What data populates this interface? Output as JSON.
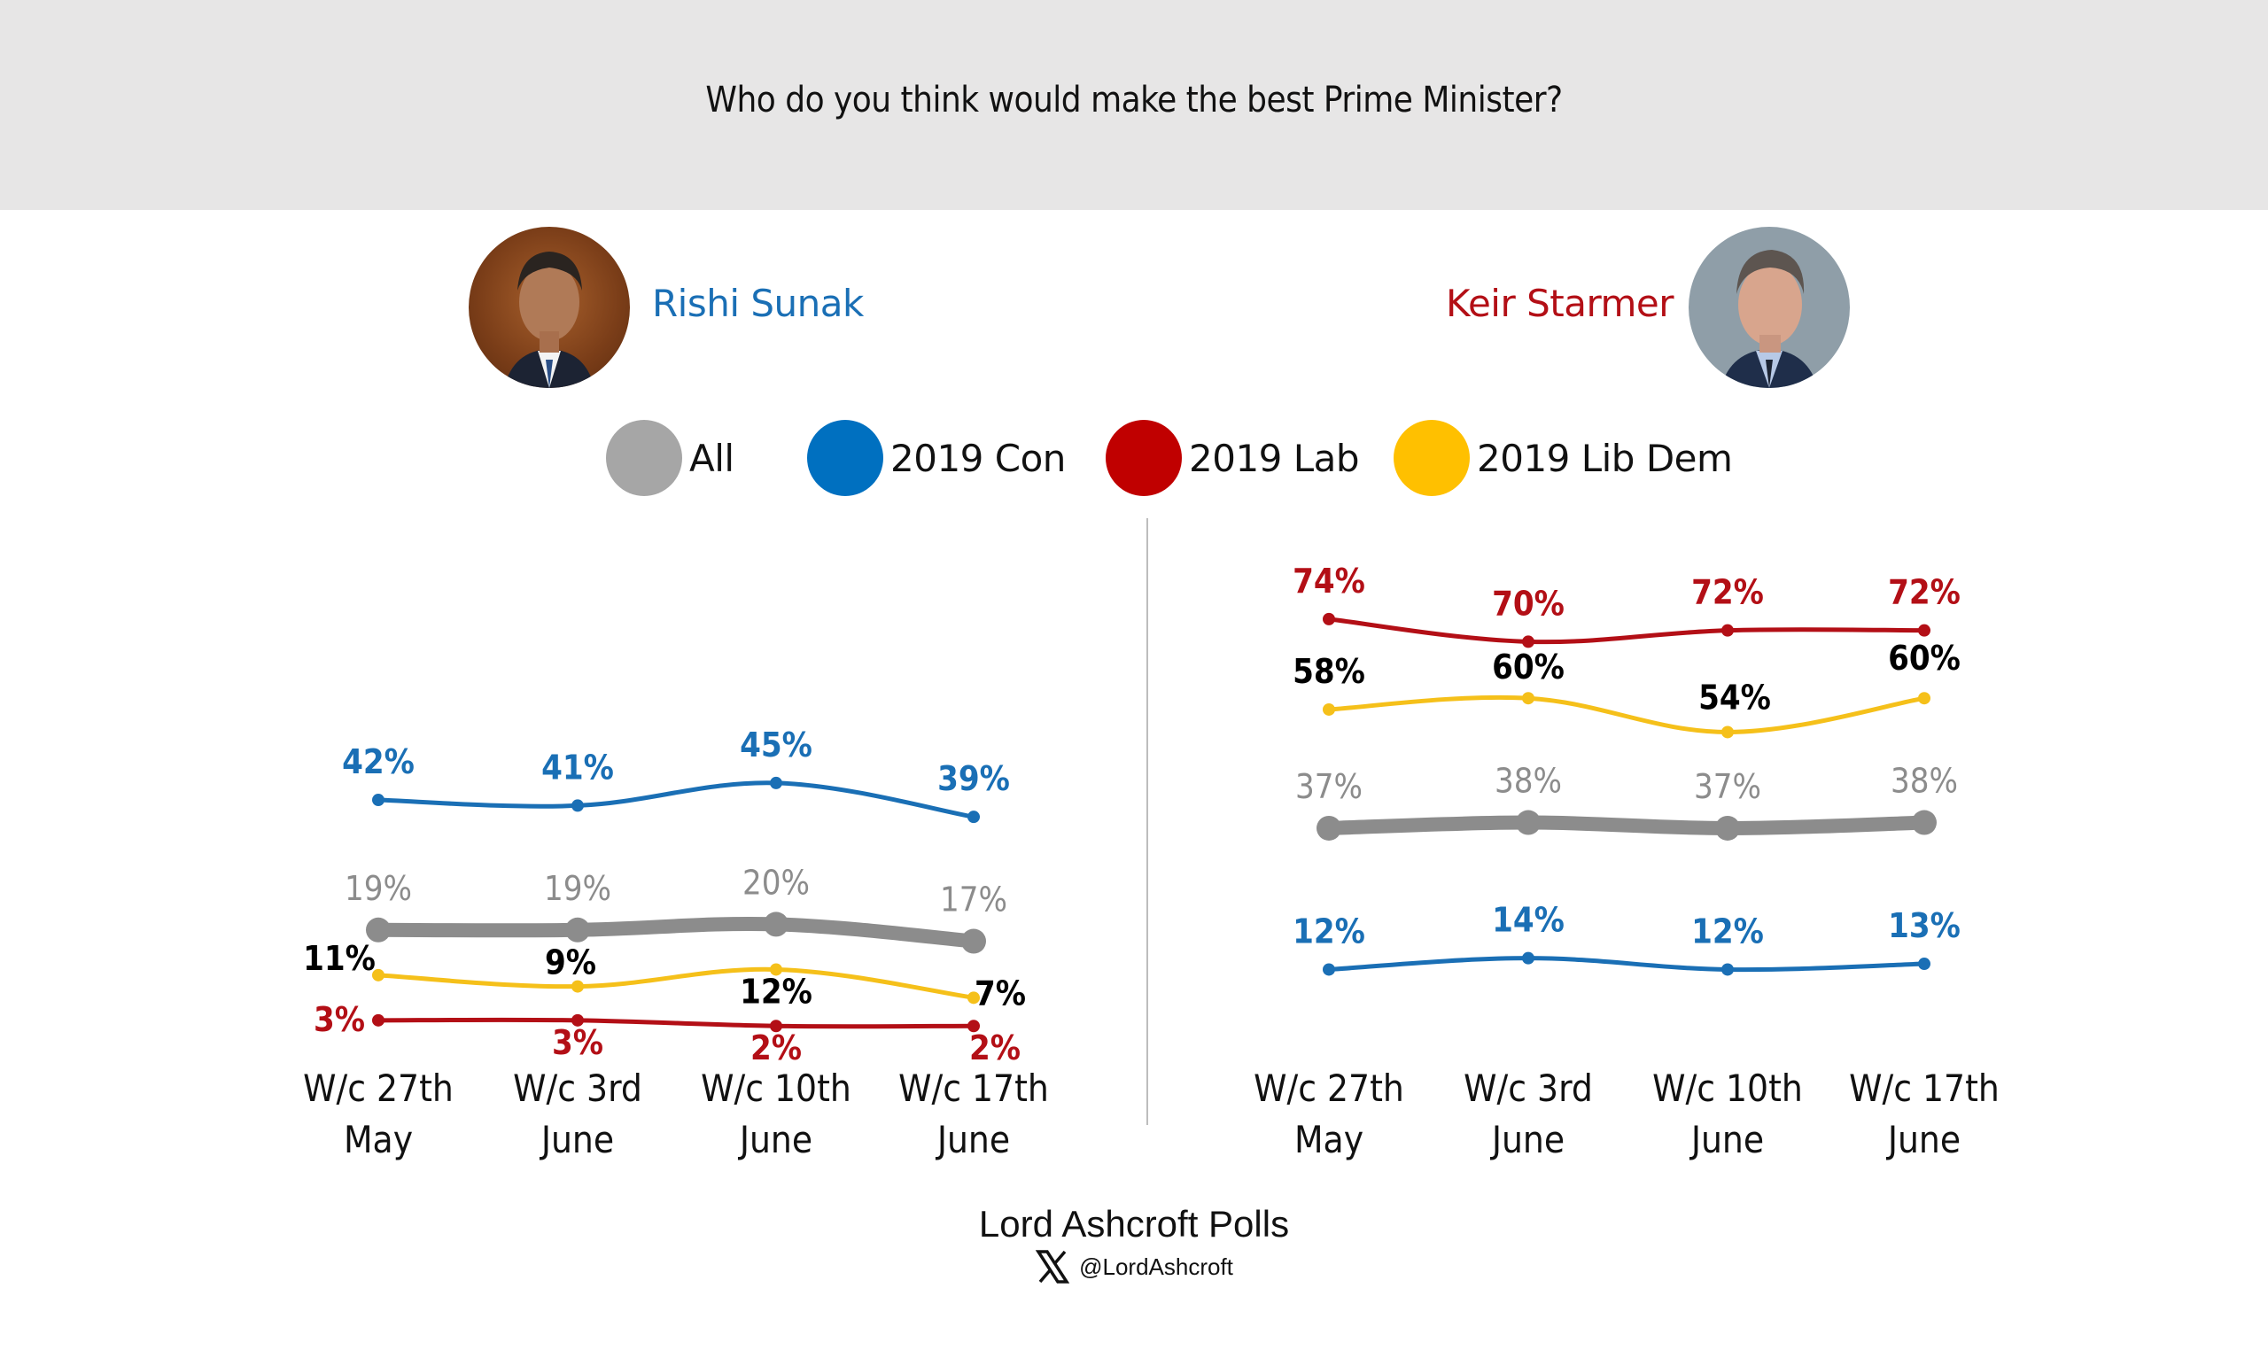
{
  "header": {
    "question": "Who do you think would make the best Prime Minister?"
  },
  "candidates": [
    {
      "name": "Rishi Sunak",
      "color": "#1a6fb5"
    },
    {
      "name": "Keir Starmer",
      "color": "#b30f16"
    }
  ],
  "legend": [
    {
      "label": "All",
      "color": "#a6a6a6"
    },
    {
      "label": "2019 Con",
      "color": "#0070c0"
    },
    {
      "label": "2019 Lab",
      "color": "#c00000"
    },
    {
      "label": "2019 Lib Dem",
      "color": "#ffc000"
    }
  ],
  "footer": {
    "title": "Lord Ashcroft Polls",
    "handle": "@LordAshcroft",
    "icon": "x-logo-icon"
  },
  "chart_data": [
    {
      "type": "line",
      "title": "Rishi Sunak",
      "categories": [
        [
          "W/c 27th",
          "May"
        ],
        [
          "W/c 3rd",
          "June"
        ],
        [
          "W/c 10th",
          "June"
        ],
        [
          "W/c 17th",
          "June"
        ]
      ],
      "ylim": [
        0,
        80
      ],
      "unit": "%",
      "grid": false,
      "series": [
        {
          "name": "2019 Con",
          "color": "#1a6fb5",
          "label_color": "#1a6fb5",
          "values": [
            42,
            41,
            45,
            39
          ],
          "labels": [
            "42%",
            "41%",
            "45%",
            "39%"
          ]
        },
        {
          "name": "All",
          "color": "#8c8c8c",
          "label_color": "#8c8c8c",
          "values": [
            19,
            19,
            20,
            17
          ],
          "labels": [
            "19%",
            "19%",
            "20%",
            "17%"
          ]
        },
        {
          "name": "2019 Lib Dem",
          "color": "#f5c01a",
          "label_color": "#000000",
          "values": [
            11,
            9,
            12,
            7
          ],
          "labels": [
            "11%",
            "9%",
            "12%",
            "7%"
          ]
        },
        {
          "name": "2019 Lab",
          "color": "#b30f16",
          "label_color": "#b30f16",
          "values": [
            3,
            3,
            2,
            2
          ],
          "labels": [
            "3%",
            "3%",
            "2%",
            "2%"
          ]
        }
      ]
    },
    {
      "type": "line",
      "title": "Keir Starmer",
      "categories": [
        [
          "W/c 27th",
          "May"
        ],
        [
          "W/c 3rd",
          "June"
        ],
        [
          "W/c 10th",
          "June"
        ],
        [
          "W/c 17th",
          "June"
        ]
      ],
      "ylim": [
        0,
        80
      ],
      "unit": "%",
      "grid": false,
      "series": [
        {
          "name": "2019 Lab",
          "color": "#b30f16",
          "label_color": "#b30f16",
          "values": [
            74,
            70,
            72,
            72
          ],
          "labels": [
            "74%",
            "70%",
            "72%",
            "72%"
          ]
        },
        {
          "name": "2019 Lib Dem",
          "color": "#f5c01a",
          "label_color": "#000000",
          "values": [
            58,
            60,
            54,
            60
          ],
          "labels": [
            "58%",
            "60%",
            "54%",
            "60%"
          ]
        },
        {
          "name": "All",
          "color": "#8c8c8c",
          "label_color": "#8c8c8c",
          "values": [
            37,
            38,
            37,
            38
          ],
          "labels": [
            "37%",
            "38%",
            "37%",
            "38%"
          ]
        },
        {
          "name": "2019 Con",
          "color": "#1a6fb5",
          "label_color": "#1a6fb5",
          "values": [
            12,
            14,
            12,
            13
          ],
          "labels": [
            "12%",
            "14%",
            "12%",
            "13%"
          ]
        }
      ]
    }
  ]
}
